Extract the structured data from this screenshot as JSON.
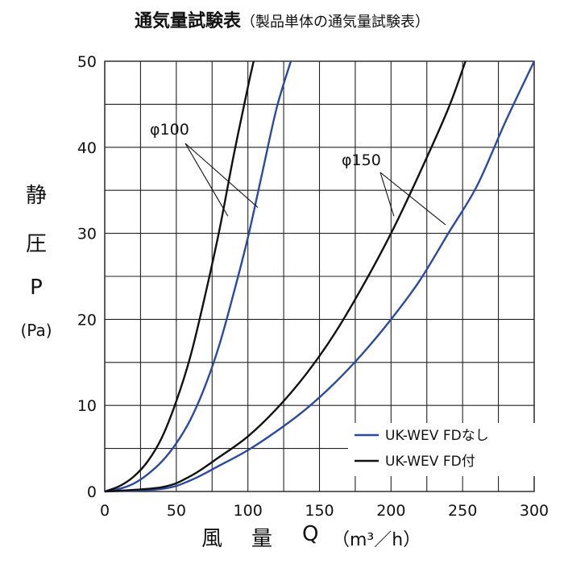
{
  "title": "通気量試験表",
  "subtitle": "（製品単体の通気量試験表）",
  "y_axis_label": {
    "line1": "静",
    "line2": "圧",
    "line3": "P",
    "unit": "(Pa)"
  },
  "x_axis_label": {
    "part1": "風",
    "part2": "量",
    "part3": "Q",
    "unit": "（m³／h）"
  },
  "annotations": {
    "phi100": "φ100",
    "phi150": "φ150"
  },
  "colors": {
    "fd_nashi": "#2a4aa0",
    "fd_tsuki": "#111111",
    "grid": "#222222"
  },
  "chart_data": {
    "type": "line",
    "title": "通気量試験表",
    "xlabel": "風量 Q（m³／h）",
    "ylabel": "静圧 P (Pa)",
    "xlim": [
      0,
      300
    ],
    "ylim": [
      0,
      50
    ],
    "x_ticks": [
      0,
      50,
      100,
      150,
      200,
      250,
      300
    ],
    "y_ticks": [
      0,
      10,
      20,
      30,
      40,
      50
    ],
    "grid": true,
    "legend_position": "bottom-right",
    "legend": [
      "UK-WEV FDなし",
      "UK-WEV FD付"
    ],
    "series": [
      {
        "name": "UK-WEV FDなし",
        "group": "φ100",
        "color": "#2a4aa0",
        "x": [
          0,
          10,
          20,
          30,
          40,
          50,
          60,
          70,
          80,
          90,
          100,
          110,
          120,
          130
        ],
        "y": [
          0,
          0.3,
          0.9,
          2.0,
          3.5,
          5.6,
          8.4,
          12.2,
          17.0,
          23.0,
          29.5,
          37.0,
          44.5,
          50
        ]
      },
      {
        "name": "UK-WEV FD付",
        "group": "φ100",
        "color": "#111111",
        "x": [
          0,
          10,
          20,
          30,
          40,
          50,
          60,
          70,
          80,
          90,
          100,
          104
        ],
        "y": [
          0,
          0.6,
          1.7,
          3.5,
          6.3,
          10.5,
          15.8,
          22.7,
          30.3,
          39.0,
          47.0,
          50
        ]
      },
      {
        "name": "UK-WEV FDなし",
        "group": "φ150",
        "color": "#2a4aa0",
        "x": [
          0,
          40,
          60,
          80,
          100,
          120,
          140,
          160,
          180,
          200,
          220,
          240,
          260,
          280,
          300
        ],
        "y": [
          0,
          0.3,
          1.3,
          3.0,
          4.8,
          7.0,
          9.5,
          12.5,
          16.0,
          20.0,
          24.5,
          30.0,
          35.5,
          43.0,
          50
        ]
      },
      {
        "name": "UK-WEV FD付",
        "group": "φ150",
        "color": "#111111",
        "x": [
          0,
          40,
          60,
          80,
          100,
          120,
          140,
          160,
          180,
          200,
          220,
          240,
          252
        ],
        "y": [
          0,
          0.5,
          1.8,
          4.0,
          6.4,
          9.6,
          13.5,
          18.2,
          23.8,
          30.0,
          37.0,
          44.5,
          50
        ]
      }
    ]
  }
}
